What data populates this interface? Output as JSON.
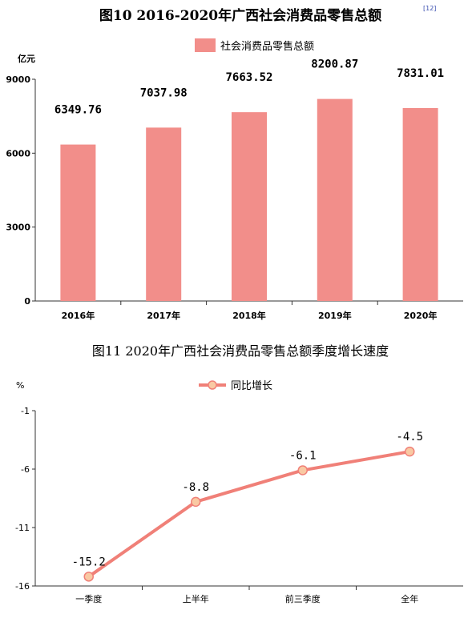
{
  "chart_data": [
    {
      "type": "bar",
      "title": "图10   2016-2020年广西社会消费品零售总额",
      "title_note": "[12]",
      "unit": "亿元",
      "categories": [
        "2016年",
        "2017年",
        "2018年",
        "2019年",
        "2020年"
      ],
      "series": [
        {
          "name": "社会消费品零售总额",
          "values": [
            6349.76,
            7037.98,
            7663.52,
            8200.87,
            7831.01
          ],
          "color": "#f28e8a"
        }
      ],
      "value_labels": [
        "6349.76",
        "7037.98",
        "7663.52",
        "8200.87",
        "7831.01"
      ],
      "ylim": [
        0,
        9000
      ],
      "yticks": [
        "0",
        "3000",
        "6000",
        "9000"
      ],
      "legend_position": "top-center",
      "grid": false
    },
    {
      "type": "line",
      "title": "图11 2020年广西社会消费品零售总额季度增长速度",
      "unit": "%",
      "categories": [
        "一季度",
        "上半年",
        "前三季度",
        "全年"
      ],
      "series": [
        {
          "name": "同比增长",
          "values": [
            -15.2,
            -8.8,
            -6.1,
            -4.5
          ],
          "color": "#f08078",
          "marker_color": "#f9c9a3"
        }
      ],
      "value_labels": [
        "-15.2",
        "-8.8",
        "-6.1",
        "-4.5"
      ],
      "ylim": [
        -16,
        -1
      ],
      "yticks": [
        "-1",
        "-6",
        "-11",
        "-16"
      ],
      "legend_position": "top-center",
      "grid": false
    }
  ]
}
